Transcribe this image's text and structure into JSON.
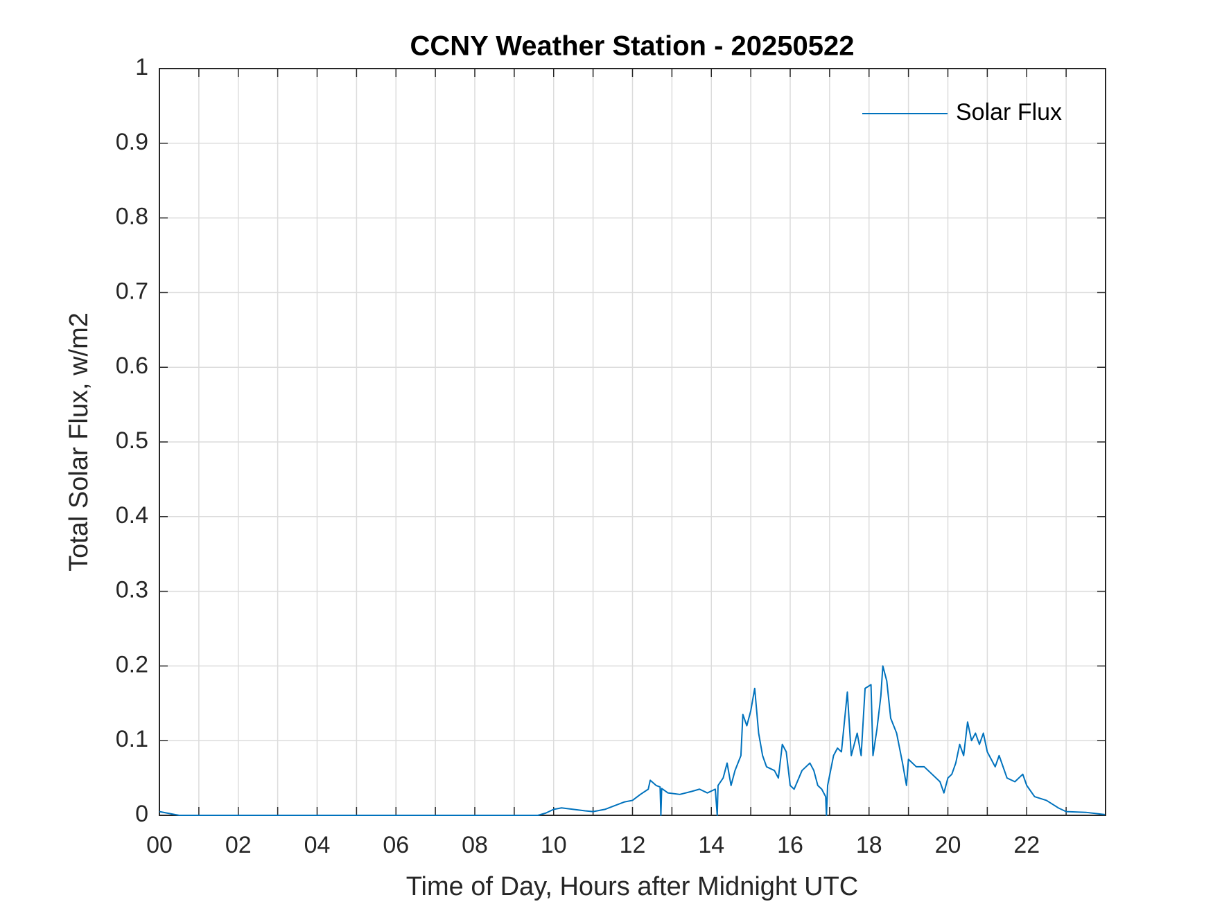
{
  "chart_data": {
    "type": "line",
    "title": "CCNY Weather Station - 20250522",
    "x_label": "Time of Day, Hours after Midnight UTC",
    "y_label": "Total Solar Flux, w/m2",
    "xlim": [
      0,
      24
    ],
    "ylim": [
      0,
      1
    ],
    "xticks": [
      {
        "value": 0,
        "label": "00"
      },
      {
        "value": 2,
        "label": "02"
      },
      {
        "value": 4,
        "label": "04"
      },
      {
        "value": 6,
        "label": "06"
      },
      {
        "value": 8,
        "label": "08"
      },
      {
        "value": 10,
        "label": "10"
      },
      {
        "value": 12,
        "label": "12"
      },
      {
        "value": 14,
        "label": "14"
      },
      {
        "value": 16,
        "label": "16"
      },
      {
        "value": 18,
        "label": "18"
      },
      {
        "value": 20,
        "label": "20"
      },
      {
        "value": 22,
        "label": "22"
      }
    ],
    "xminorticks": [
      1,
      3,
      5,
      7,
      9,
      11,
      13,
      15,
      17,
      19,
      21,
      23
    ],
    "yticks": [
      0,
      0.1,
      0.2,
      0.3,
      0.4,
      0.5,
      0.6,
      0.7,
      0.8,
      0.9,
      1
    ],
    "grid": true,
    "legend_position": "top-right",
    "x": [
      0,
      0.3,
      0.5,
      2,
      4,
      6,
      8,
      9.6,
      9.8,
      10,
      10.2,
      10.5,
      10.8,
      11,
      11.3,
      11.5,
      11.8,
      12,
      12.2,
      12.4,
      12.45,
      12.6,
      12.7,
      12.72,
      12.74,
      12.9,
      13.2,
      13.5,
      13.7,
      13.9,
      14.1,
      14.15,
      14.17,
      14.3,
      14.4,
      14.5,
      14.6,
      14.75,
      14.8,
      14.9,
      15,
      15.1,
      15.2,
      15.3,
      15.4,
      15.6,
      15.7,
      15.8,
      15.9,
      16,
      16.1,
      16.3,
      16.5,
      16.6,
      16.7,
      16.8,
      16.9,
      16.92,
      16.95,
      17.1,
      17.2,
      17.3,
      17.45,
      17.55,
      17.7,
      17.8,
      17.9,
      18.05,
      18.1,
      18.2,
      18.3,
      18.35,
      18.45,
      18.55,
      18.7,
      18.85,
      18.95,
      19,
      19.2,
      19.4,
      19.6,
      19.8,
      19.9,
      20,
      20.1,
      20.2,
      20.3,
      20.4,
      20.5,
      20.6,
      20.7,
      20.8,
      20.9,
      21,
      21.2,
      21.3,
      21.5,
      21.7,
      21.9,
      22,
      22.2,
      22.5,
      22.8,
      23,
      23.5,
      23.98
    ],
    "series": [
      {
        "name": "Solar Flux",
        "color": "#0072bd",
        "values": [
          0.005,
          0.002,
          0,
          0,
          0,
          0,
          0,
          0,
          0.003,
          0.008,
          0.01,
          0.008,
          0.006,
          0.005,
          0.008,
          0.012,
          0.018,
          0.02,
          0.028,
          0.035,
          0.047,
          0.04,
          0.038,
          0,
          0.036,
          0.03,
          0.028,
          0.032,
          0.035,
          0.03,
          0.035,
          0,
          0.04,
          0.05,
          0.07,
          0.04,
          0.06,
          0.08,
          0.135,
          0.12,
          0.14,
          0.17,
          0.11,
          0.08,
          0.065,
          0.06,
          0.05,
          0.095,
          0.085,
          0.04,
          0.035,
          0.06,
          0.07,
          0.06,
          0.04,
          0.035,
          0.025,
          0,
          0.04,
          0.08,
          0.09,
          0.085,
          0.165,
          0.08,
          0.11,
          0.08,
          0.17,
          0.175,
          0.08,
          0.115,
          0.16,
          0.2,
          0.18,
          0.13,
          0.11,
          0.07,
          0.04,
          0.075,
          0.065,
          0.065,
          0.055,
          0.045,
          0.03,
          0.05,
          0.055,
          0.07,
          0.095,
          0.08,
          0.125,
          0.1,
          0.11,
          0.095,
          0.11,
          0.085,
          0.065,
          0.08,
          0.05,
          0.045,
          0.055,
          0.04,
          0.025,
          0.02,
          0.01,
          0.005,
          0.004,
          0.001
        ]
      }
    ]
  }
}
